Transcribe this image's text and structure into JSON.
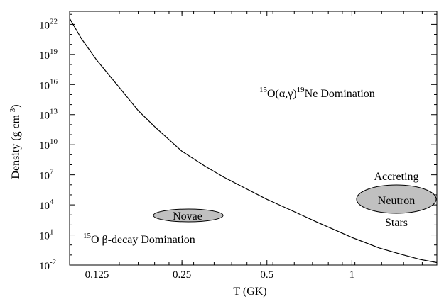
{
  "chart_data": {
    "type": "line",
    "xlabel": "T (GK)",
    "ylabel_main": "Density (g cm",
    "ylabel_sup": "-3",
    "ylabel_close": ")",
    "x_scale": "log2",
    "y_scale": "log10",
    "xlim": [
      0.1,
      2.0
    ],
    "ylim_exponents": [
      -2,
      23.3
    ],
    "x_ticks": [
      {
        "value": 0.125,
        "label": "0.125"
      },
      {
        "value": 0.25,
        "label": "0.25"
      },
      {
        "value": 0.5,
        "label": "0.5"
      },
      {
        "value": 1.0,
        "label": "1"
      }
    ],
    "y_ticks": [
      {
        "exp": -2,
        "base": "10",
        "sup": "-2"
      },
      {
        "exp": 1,
        "base": "10",
        "sup": "1"
      },
      {
        "exp": 4,
        "base": "10",
        "sup": "4"
      },
      {
        "exp": 7,
        "base": "10",
        "sup": "7"
      },
      {
        "exp": 10,
        "base": "10",
        "sup": "10"
      },
      {
        "exp": 13,
        "base": "10",
        "sup": "13"
      },
      {
        "exp": 16,
        "base": "10",
        "sup": "16"
      },
      {
        "exp": 19,
        "base": "10",
        "sup": "19"
      },
      {
        "exp": 22,
        "base": "10",
        "sup": "22"
      }
    ],
    "series": [
      {
        "points": [
          {
            "T": 0.1,
            "log_rho": 22.6
          },
          {
            "T": 0.11,
            "log_rho": 20.6
          },
          {
            "T": 0.125,
            "log_rho": 18.4
          },
          {
            "T": 0.15,
            "log_rho": 15.7
          },
          {
            "T": 0.175,
            "log_rho": 13.4
          },
          {
            "T": 0.2,
            "log_rho": 11.8
          },
          {
            "T": 0.25,
            "log_rho": 9.35
          },
          {
            "T": 0.3,
            "log_rho": 7.9
          },
          {
            "T": 0.35,
            "log_rho": 6.8
          },
          {
            "T": 0.4,
            "log_rho": 5.95
          },
          {
            "T": 0.5,
            "log_rho": 4.55
          },
          {
            "T": 0.6,
            "log_rho": 3.55
          },
          {
            "T": 0.75,
            "log_rho": 2.3
          },
          {
            "T": 1.0,
            "log_rho": 0.75
          },
          {
            "T": 1.25,
            "log_rho": -0.3
          },
          {
            "T": 1.5,
            "log_rho": -0.95
          },
          {
            "T": 1.75,
            "log_rho": -1.45
          },
          {
            "T": 2.0,
            "log_rho": -1.75
          }
        ],
        "color": "#000000"
      }
    ],
    "annotations": {
      "upper_region": {
        "sup1": "15",
        "text1": "O(α,γ)",
        "sup2": "19",
        "text2": "Ne Domination"
      },
      "lower_region": {
        "sup1": "15",
        "text1": "O β-decay Domination"
      },
      "novae": "Novae",
      "accreting": "Accreting",
      "neutron": "Neutron",
      "stars": "Stars"
    },
    "ellipse_fill": "#c0c0c0",
    "grid": false
  }
}
